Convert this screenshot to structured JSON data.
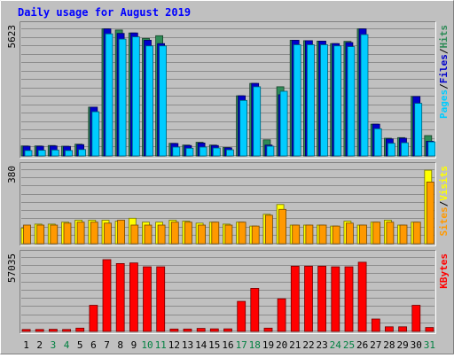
{
  "chart_data": {
    "type": "bar",
    "title": "Daily usage for August 2019",
    "categories": [
      "1",
      "2",
      "3",
      "4",
      "5",
      "6",
      "7",
      "8",
      "9",
      "10",
      "11",
      "12",
      "13",
      "14",
      "15",
      "16",
      "17",
      "18",
      "19",
      "20",
      "21",
      "22",
      "23",
      "24",
      "25",
      "26",
      "27",
      "28",
      "29",
      "30",
      "31"
    ],
    "weekend_days": [
      "3",
      "4",
      "10",
      "11",
      "17",
      "18",
      "24",
      "25",
      "31"
    ],
    "panels": [
      {
        "id": "top",
        "max_label": "5623",
        "ymax": 5623,
        "right_label": [
          "Pages",
          "/",
          "Files",
          "/",
          "Hits"
        ],
        "series": [
          {
            "name": "Hits",
            "color": "#2e8b57",
            "values": [
              440,
              440,
              460,
              430,
              520,
              2150,
              5600,
              5550,
              5420,
              5180,
              5300,
              560,
              480,
              600,
              480,
              370,
              2650,
              3200,
              710,
              3050,
              5100,
              5080,
              5060,
              4950,
              5050,
              5600,
              1400,
              780,
              810,
              2620,
              900
            ]
          },
          {
            "name": "Files",
            "color": "#0000cc",
            "values": [
              430,
              430,
              440,
              420,
              500,
              2150,
              5600,
              5400,
              5420,
              5100,
              4950,
              550,
              460,
              570,
              460,
              360,
              2650,
              3200,
              480,
              2700,
              5100,
              5080,
              5060,
              4950,
              5000,
              5600,
              1400,
              750,
              780,
              2620,
              650
            ]
          },
          {
            "name": "Pages",
            "color": "#00ccff",
            "values": [
              240,
              250,
              260,
              240,
              280,
              1950,
              5380,
              5150,
              5250,
              4850,
              4850,
              390,
              340,
              390,
              350,
              270,
              2450,
              3050,
              430,
              2850,
              4900,
              4900,
              4900,
              4850,
              4820,
              5350,
              1200,
              560,
              580,
              2320,
              620
            ]
          }
        ]
      },
      {
        "id": "mid",
        "max_label": "380",
        "ymax": 380,
        "right_label": [
          "Sites",
          "/",
          "Visits"
        ],
        "series": [
          {
            "name": "Visits",
            "color": "#ffff00",
            "values": [
              80,
              100,
              100,
              110,
              120,
              120,
              120,
              115,
              130,
              110,
              110,
              120,
              115,
              105,
              110,
              100,
              110,
              90,
              150,
              200,
              95,
              95,
              95,
              90,
              115,
              95,
              110,
              120,
              95,
              110,
              375
            ]
          },
          {
            "name": "Sites",
            "color": "#ff9900",
            "values": [
              95,
              95,
              95,
              105,
              110,
              110,
              105,
              120,
              95,
              95,
              95,
              110,
              110,
              95,
              110,
              95,
              110,
              90,
              145,
              175,
              95,
              95,
              95,
              90,
              105,
              95,
              110,
              110,
              95,
              110,
              315
            ]
          }
        ]
      },
      {
        "id": "bot",
        "max_label": "57035",
        "ymax": 57035,
        "right_label": [
          "KBytes"
        ],
        "series": [
          {
            "name": "KBytes",
            "color": "#ff0000",
            "values": [
              1500,
              1500,
              1600,
              1500,
              2500,
              20000,
              55000,
              52000,
              52500,
              49500,
              49500,
              1800,
              1800,
              2300,
              2000,
              2000,
              23000,
              33000,
              2500,
              25000,
              50000,
              50000,
              50000,
              49500,
              49500,
              53000,
              9500,
              3500,
              3500,
              20000,
              3000
            ]
          }
        ]
      }
    ]
  }
}
